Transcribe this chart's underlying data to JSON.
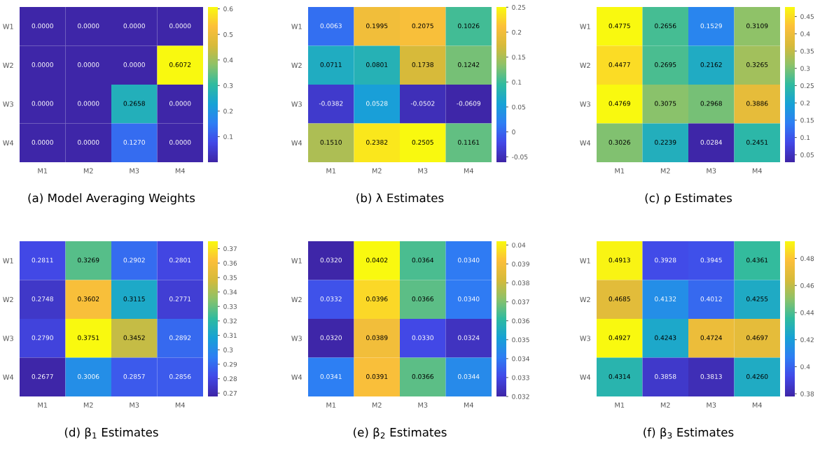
{
  "chart_data": [
    {
      "type": "heatmap",
      "title": "(a) Model Averaging Weights",
      "categories": [
        "M1",
        "M2",
        "M3",
        "M4"
      ],
      "y_categories": [
        "W1",
        "W2",
        "W3",
        "W4"
      ],
      "cells": [
        [
          0.0,
          0.0,
          0.0,
          0.0
        ],
        [
          0.0,
          0.0,
          0.0,
          0.6072
        ],
        [
          0.0,
          0.0,
          0.2658,
          0.0
        ],
        [
          0.0,
          0.0,
          0.127,
          0.0
        ]
      ],
      "cell_labels": [
        [
          "0.0000",
          "0.0000",
          "0.0000",
          "0.0000"
        ],
        [
          "0.0000",
          "0.0000",
          "0.0000",
          "0.6072"
        ],
        [
          "0.0000",
          "0.0000",
          "0.2658",
          "0.0000"
        ],
        [
          "0.0000",
          "0.0000",
          "0.1270",
          "0.0000"
        ]
      ],
      "clim": [
        0.0,
        0.6072
      ],
      "cticks": [
        0.1,
        0.2,
        0.3,
        0.4,
        0.5,
        0.6
      ]
    },
    {
      "type": "heatmap",
      "title": "(b) λ Estimates",
      "categories": [
        "M1",
        "M2",
        "M3",
        "M4"
      ],
      "y_categories": [
        "W1",
        "W2",
        "W3",
        "W4"
      ],
      "cells": [
        [
          0.0063,
          0.1995,
          0.2075,
          0.1026
        ],
        [
          0.0711,
          0.0801,
          0.1738,
          0.1242
        ],
        [
          -0.0382,
          0.0528,
          -0.0502,
          -0.0609
        ],
        [
          0.151,
          0.2382,
          0.2505,
          0.1161
        ]
      ],
      "cell_labels": [
        [
          "0.0063",
          "0.1995",
          "0.2075",
          "0.1026"
        ],
        [
          "0.0711",
          "0.0801",
          "0.1738",
          "0.1242"
        ],
        [
          "-0.0382",
          "0.0528",
          "-0.0502",
          "-0.0609"
        ],
        [
          "0.1510",
          "0.2382",
          "0.2505",
          "0.1161"
        ]
      ],
      "clim": [
        -0.0609,
        0.2505
      ],
      "cticks": [
        -0.05,
        0,
        0.05,
        0.1,
        0.15,
        0.2,
        0.25
      ]
    },
    {
      "type": "heatmap",
      "title": "(c) ρ Estimates",
      "categories": [
        "M1",
        "M2",
        "M3",
        "M4"
      ],
      "y_categories": [
        "W1",
        "W2",
        "W3",
        "W4"
      ],
      "cells": [
        [
          0.4775,
          0.2656,
          0.1529,
          0.3109
        ],
        [
          0.4477,
          0.2695,
          0.2162,
          0.3265
        ],
        [
          0.4769,
          0.3075,
          0.2968,
          0.3886
        ],
        [
          0.3026,
          0.2239,
          0.0284,
          0.2451
        ]
      ],
      "cell_labels": [
        [
          "0.4775",
          "0.2656",
          "0.1529",
          "0.3109"
        ],
        [
          "0.4477",
          "0.2695",
          "0.2162",
          "0.3265"
        ],
        [
          "0.4769",
          "0.3075",
          "0.2968",
          "0.3886"
        ],
        [
          "0.3026",
          "0.2239",
          "0.0284",
          "0.2451"
        ]
      ],
      "clim": [
        0.0284,
        0.4775
      ],
      "cticks": [
        0.05,
        0.1,
        0.15,
        0.2,
        0.25,
        0.3,
        0.35,
        0.4,
        0.45
      ]
    },
    {
      "type": "heatmap",
      "title": "(d) β$_{1}$ Estimates",
      "categories": [
        "M1",
        "M2",
        "M3",
        "M4"
      ],
      "y_categories": [
        "W1",
        "W2",
        "W3",
        "W4"
      ],
      "cells": [
        [
          0.2811,
          0.3269,
          0.2902,
          0.2801
        ],
        [
          0.2748,
          0.3602,
          0.3115,
          0.2771
        ],
        [
          0.279,
          0.3751,
          0.3452,
          0.2892
        ],
        [
          0.2677,
          0.3006,
          0.2857,
          0.2856
        ]
      ],
      "cell_labels": [
        [
          "0.2811",
          "0.3269",
          "0.2902",
          "0.2801"
        ],
        [
          "0.2748",
          "0.3602",
          "0.3115",
          "0.2771"
        ],
        [
          "0.2790",
          "0.3751",
          "0.3452",
          "0.2892"
        ],
        [
          "0.2677",
          "0.3006",
          "0.2857",
          "0.2856"
        ]
      ],
      "clim": [
        0.2677,
        0.3751
      ],
      "cticks": [
        0.27,
        0.28,
        0.29,
        0.3,
        0.31,
        0.32,
        0.33,
        0.34,
        0.35,
        0.36,
        0.37
      ]
    },
    {
      "type": "heatmap",
      "title": "(e) β$_{2}$ Estimates",
      "categories": [
        "M1",
        "M2",
        "M3",
        "M4"
      ],
      "y_categories": [
        "W1",
        "W2",
        "W3",
        "W4"
      ],
      "cells": [
        [
          0.032,
          0.0402,
          0.0364,
          0.034
        ],
        [
          0.0332,
          0.0396,
          0.0366,
          0.034
        ],
        [
          0.032,
          0.0389,
          0.033,
          0.0324
        ],
        [
          0.0341,
          0.0391,
          0.0366,
          0.0344
        ]
      ],
      "cell_labels": [
        [
          "0.0320",
          "0.0402",
          "0.0364",
          "0.0340"
        ],
        [
          "0.0332",
          "0.0396",
          "0.0366",
          "0.0340"
        ],
        [
          "0.0320",
          "0.0389",
          "0.0330",
          "0.0324"
        ],
        [
          "0.0341",
          "0.0391",
          "0.0366",
          "0.0344"
        ]
      ],
      "clim": [
        0.032,
        0.0402
      ],
      "cticks": [
        0.032,
        0.033,
        0.034,
        0.035,
        0.036,
        0.037,
        0.038,
        0.039,
        0.04
      ]
    },
    {
      "type": "heatmap",
      "title": "(f) β$_{3}$ Estimates",
      "categories": [
        "M1",
        "M2",
        "M3",
        "M4"
      ],
      "y_categories": [
        "W1",
        "W2",
        "W3",
        "W4"
      ],
      "cells": [
        [
          0.4913,
          0.3928,
          0.3945,
          0.4361
        ],
        [
          0.4685,
          0.4132,
          0.4012,
          0.4255
        ],
        [
          0.4927,
          0.4243,
          0.4724,
          0.4697
        ],
        [
          0.4314,
          0.3858,
          0.3813,
          0.426
        ]
      ],
      "cell_labels": [
        [
          "0.4913",
          "0.3928",
          "0.3945",
          "0.4361"
        ],
        [
          "0.4685",
          "0.4132",
          "0.4012",
          "0.4255"
        ],
        [
          "0.4927",
          "0.4243",
          "0.4724",
          "0.4697"
        ],
        [
          "0.4314",
          "0.3858",
          "0.3813",
          "0.4260"
        ]
      ],
      "clim": [
        0.378,
        0.4927
      ],
      "cticks": [
        0.38,
        0.4,
        0.42,
        0.44,
        0.46,
        0.48
      ]
    }
  ]
}
